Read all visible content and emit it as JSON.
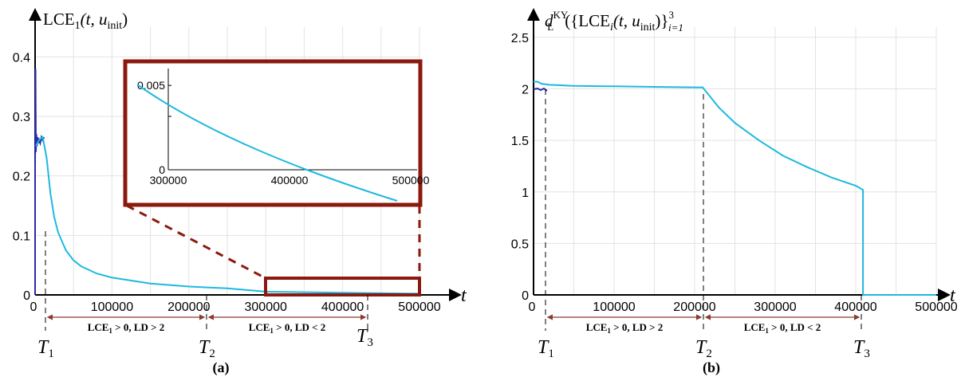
{
  "colors": {
    "curve": "#1fb8e0",
    "curve_early": "#2a2aa8",
    "zoom": "#8b1a0e",
    "arrow": "#8b3a2e"
  },
  "chart_data": [
    {
      "type": "line",
      "panel": "(a)",
      "ylabel": "LCE",
      "ylabel_sub": "1",
      "ylabel_args": "(t, u",
      "ylabel_args_sub": "init",
      "ylabel_close": ")",
      "xlabel": "t",
      "xlim": [
        0,
        500000
      ],
      "ylim": [
        0,
        0.45
      ],
      "x_ticks": [
        "0",
        "100000",
        "200000",
        "300000",
        "400000",
        "500000"
      ],
      "y_ticks": [
        "0",
        "0.1",
        "0.2",
        "0.3",
        "0.4"
      ],
      "x": [
        1000,
        5000,
        10000,
        15000,
        20000,
        25000,
        30000,
        40000,
        50000,
        60000,
        80000,
        100000,
        150000,
        200000,
        250000,
        300000,
        350000,
        400000,
        450000,
        500000
      ],
      "y": [
        0.25,
        0.26,
        0.265,
        0.23,
        0.17,
        0.13,
        0.105,
        0.075,
        0.058,
        0.048,
        0.036,
        0.029,
        0.019,
        0.014,
        0.011,
        0.0055,
        0.0045,
        0.0036,
        0.0028,
        0.0021
      ],
      "markers": [
        "T",
        "T",
        "T"
      ],
      "marker_subs": [
        "1",
        "2",
        "3"
      ],
      "regions": [
        {
          "base": "LCE",
          "sub": "1",
          "rest": " > 0,  LD > 2"
        },
        {
          "base": "LCE",
          "sub": "1",
          "rest": " > 0,  LD < 2"
        }
      ],
      "inset": {
        "xlim": [
          300000,
          500000
        ],
        "ylim": [
          0,
          0.006
        ],
        "x_ticks": [
          "300000",
          "400000",
          "500000"
        ],
        "y_ticks": [
          "0",
          "0.005"
        ],
        "x": [
          300000,
          350000,
          400000,
          450000,
          500000
        ],
        "y": [
          0.0055,
          0.0045,
          0.0036,
          0.0028,
          0.0021
        ]
      }
    },
    {
      "type": "line",
      "panel": "(b)",
      "ylabel_d": "d",
      "ylabel_d_sub": "L",
      "ylabel_d_sup": "KY",
      "ylabel_open": "({LCE",
      "ylabel_lce_sub": "i",
      "ylabel_args": "(t, u",
      "ylabel_args_sub": "init",
      "ylabel_close": ")}",
      "ylabel_range_sub": "i=1",
      "ylabel_range_sup": "3",
      "xlabel": "t",
      "xlim": [
        0,
        500000
      ],
      "ylim": [
        0,
        2.6
      ],
      "x_ticks": [
        "0",
        "100000",
        "200000",
        "300000",
        "400000",
        "500000"
      ],
      "y_ticks": [
        "0",
        "0.5",
        "1",
        "1.5",
        "2",
        "2.5"
      ],
      "x": [
        0,
        5000,
        10000,
        20000,
        50000,
        100000,
        150000,
        200000,
        210000,
        230000,
        250000,
        280000,
        310000,
        340000,
        370000,
        400000,
        409000,
        409000,
        500000
      ],
      "y": [
        2.07,
        2.07,
        2.05,
        2.04,
        2.03,
        2.025,
        2.02,
        2.015,
        2.015,
        1.82,
        1.67,
        1.5,
        1.35,
        1.24,
        1.14,
        1.06,
        1.02,
        0,
        0
      ],
      "markers": [
        "T",
        "T",
        "T"
      ],
      "marker_subs": [
        "1",
        "2",
        "3"
      ],
      "regions": [
        {
          "base": "LCE",
          "sub": "1",
          "rest": " > 0,  LD > 2"
        },
        {
          "base": "LCE",
          "sub": "1",
          "rest": " > 0,  LD < 2"
        }
      ]
    }
  ]
}
